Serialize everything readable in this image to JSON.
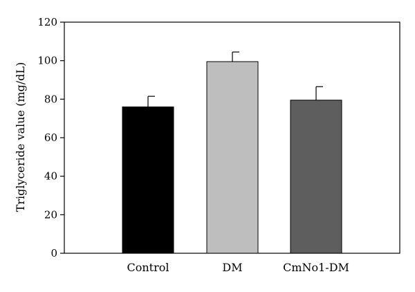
{
  "chart_data": {
    "type": "bar",
    "title": "",
    "xlabel": "",
    "ylabel": "Triglyceride value (mg/dL)",
    "ylim": [
      0,
      120
    ],
    "yticks": [
      0,
      20,
      40,
      60,
      80,
      100,
      120
    ],
    "grid": false,
    "categories": [
      "Control",
      "DM",
      "CmNo1-DM"
    ],
    "values": [
      76,
      99.5,
      79.5
    ],
    "error": [
      5.5,
      5,
      7
    ],
    "colors": [
      "#000000",
      "#bebebe",
      "#5e5e5e"
    ]
  }
}
